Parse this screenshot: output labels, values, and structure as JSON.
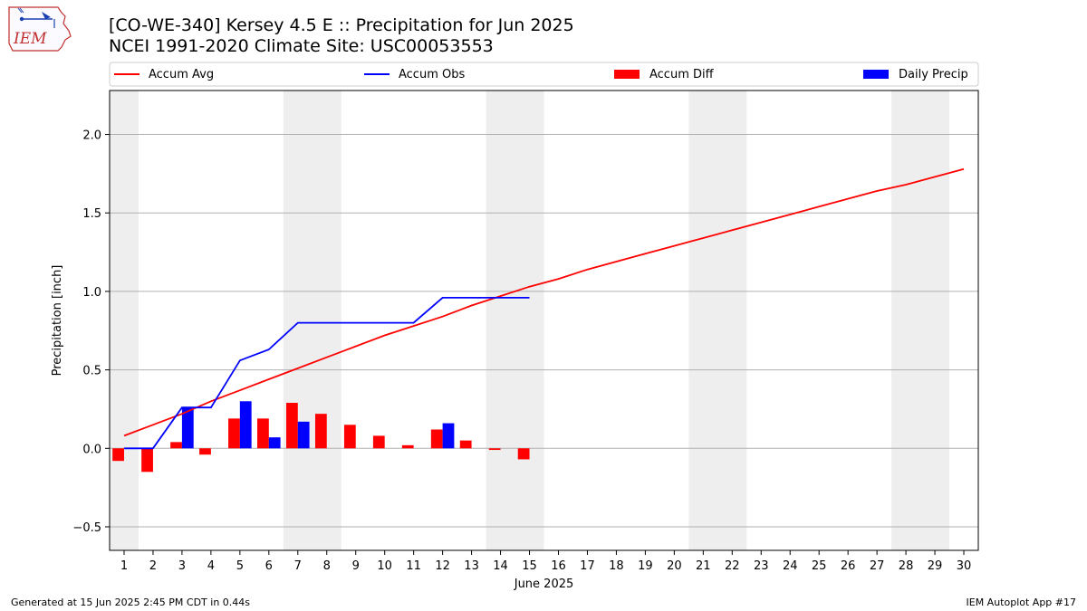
{
  "title_line1": "[CO-WE-340] Kersey 4.5 E :: Precipitation for Jun 2025",
  "title_line2": "NCEI 1991-2020 Climate Site: USC00053553",
  "logo_text": "IEM",
  "footer_left": "Generated at 15 Jun 2025 2:45 PM CDT in 0.44s",
  "footer_right": "IEM Autoplot App #17",
  "colors": {
    "accum_avg": "#ff0000",
    "accum_obs": "#0000ff",
    "accum_diff": "#ff0000",
    "daily_precip": "#0000ff",
    "weekend_shade": "#eeeeee",
    "grid": "#b0b0b0"
  },
  "chart_data": {
    "type": "bar",
    "xlabel": "June 2025",
    "ylabel": "Precipitation [inch]",
    "x": [
      1,
      2,
      3,
      4,
      5,
      6,
      7,
      8,
      9,
      10,
      11,
      12,
      13,
      14,
      15,
      16,
      17,
      18,
      19,
      20,
      21,
      22,
      23,
      24,
      25,
      26,
      27,
      28,
      29,
      30
    ],
    "xlim": [
      0.5,
      30.5
    ],
    "ylim": [
      -0.65,
      2.28
    ],
    "yticks": [
      -0.5,
      0.0,
      0.5,
      1.0,
      1.5,
      2.0
    ],
    "ytick_labels": [
      "−0.5",
      "0.0",
      "0.5",
      "1.0",
      "1.5",
      "2.0"
    ],
    "grid": "horizontal",
    "legend_position": "top",
    "weekend_shading": [
      [
        0.5,
        1.5
      ],
      [
        6.5,
        8.5
      ],
      [
        13.5,
        15.5
      ],
      [
        20.5,
        22.5
      ],
      [
        27.5,
        29.5
      ]
    ],
    "series": [
      {
        "name": "Accum Avg",
        "kind": "line",
        "x": [
          1,
          2,
          3,
          4,
          5,
          6,
          7,
          8,
          9,
          10,
          11,
          12,
          13,
          14,
          15,
          16,
          17,
          18,
          19,
          20,
          21,
          22,
          23,
          24,
          25,
          26,
          27,
          28,
          29,
          30
        ],
        "values": [
          0.08,
          0.15,
          0.22,
          0.3,
          0.37,
          0.44,
          0.51,
          0.58,
          0.65,
          0.72,
          0.78,
          0.84,
          0.91,
          0.97,
          1.03,
          1.08,
          1.14,
          1.19,
          1.24,
          1.29,
          1.34,
          1.39,
          1.44,
          1.49,
          1.54,
          1.59,
          1.64,
          1.68,
          1.73,
          1.78
        ]
      },
      {
        "name": "Accum Obs",
        "kind": "line",
        "x": [
          1,
          2,
          3,
          4,
          5,
          6,
          7,
          8,
          9,
          10,
          11,
          12,
          13,
          14,
          15
        ],
        "values": [
          0.0,
          0.0,
          0.26,
          0.26,
          0.56,
          0.63,
          0.8,
          0.8,
          0.8,
          0.8,
          0.8,
          0.96,
          0.96,
          0.96,
          0.96
        ]
      },
      {
        "name": "Accum Diff",
        "kind": "bar",
        "x": [
          1,
          2,
          3,
          4,
          5,
          6,
          7,
          8,
          9,
          10,
          11,
          12,
          13,
          14,
          15
        ],
        "values": [
          -0.08,
          -0.15,
          0.04,
          -0.04,
          0.19,
          0.19,
          0.29,
          0.22,
          0.15,
          0.08,
          0.02,
          0.12,
          0.05,
          -0.01,
          -0.07
        ]
      },
      {
        "name": "Daily Precip",
        "kind": "bar",
        "x": [
          1,
          2,
          3,
          4,
          5,
          6,
          7,
          8,
          9,
          10,
          11,
          12,
          13,
          14,
          15
        ],
        "values": [
          0.0,
          0.0,
          0.26,
          0.0,
          0.3,
          0.07,
          0.17,
          0.0,
          0.0,
          0.0,
          0.0,
          0.16,
          0.0,
          0.0,
          0.0
        ]
      }
    ]
  }
}
